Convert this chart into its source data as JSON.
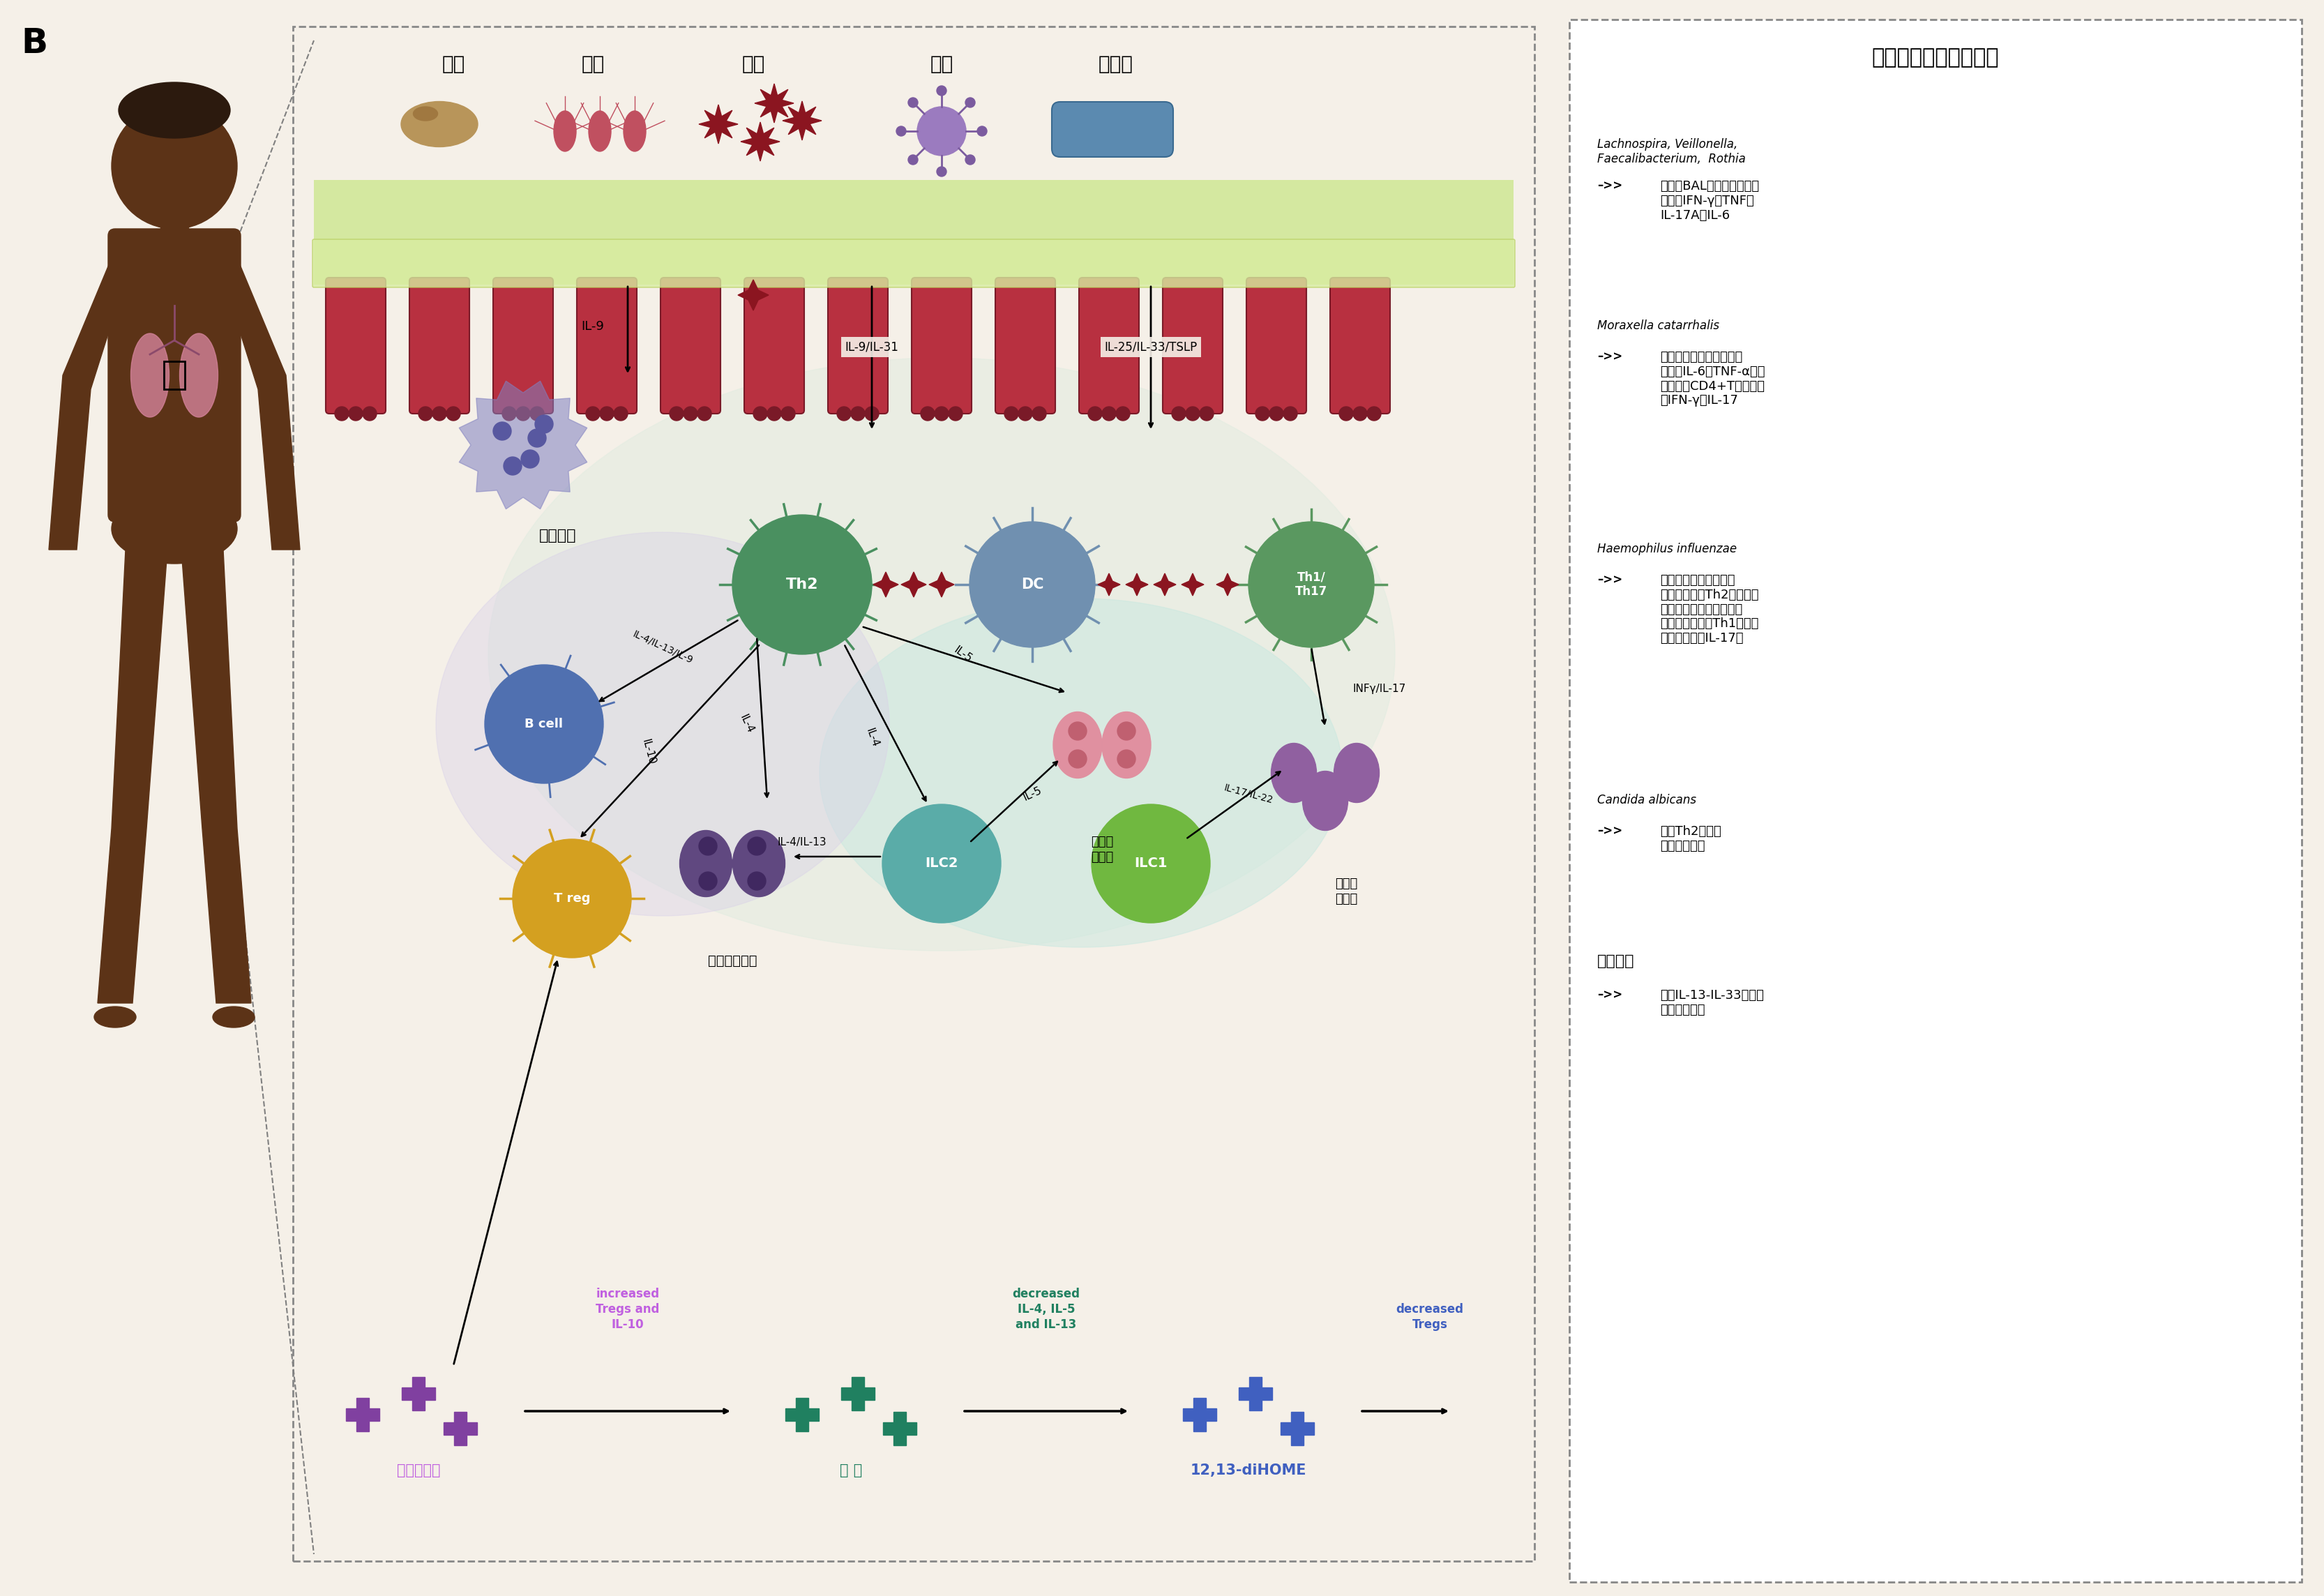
{
  "bg_color": "#f5f0e8",
  "title_right": "小鼠过敏性气道模型：",
  "entry1_italic": "Lachnospira, Veillonella,\nFaecalibacterium,  Rothia",
  "entry1_arrow": "–>>",
  "entry1_text": "降低了BAL中的总肺细胞，\n降低了IFN-γ，TNF，\nIL-17A，IL-6",
  "entry2_italic": "Moraxella catarrhalis",
  "entry2_arrow": "–>>",
  "entry2_text": "导致中性粒细胞浸润，高\n水平的IL-6，TNF-α，中\n等水平的CD4+T细胞衍生\n的IFN-γ和IL-17",
  "entry3_italic": "Haemophilus influenzae",
  "entry3_arrow": "–>>",
  "entry3_text": "导致类固醇敏感性过敏\n性气道疾病（Th2细胞和嗜\n酸性粒细胞）转化为类固\n醇耐药性疾病（Th1细胞，\n中性粒细胞，IL-17）",
  "entry4_italic": "Candida albicans",
  "entry4_arrow": "–>>",
  "entry4_text": "导致Th2介导的\n气道炎症加重",
  "entry5_bold": "流感感染",
  "entry5_arrow": "–>>",
  "entry5_text": "通过IL-13-IL-33轴诱发\n气道高反应性",
  "top_labels": [
    "真菌",
    "细菌",
    "抗原",
    "病毒",
    "古细菌"
  ],
  "label_IL9": "IL-9",
  "label_IL9_IL31": "IL-9/IL-31",
  "label_IL25": "IL-25/IL-33/TSLP",
  "cell_Th2": "Th2",
  "cell_DC": "DC",
  "cell_Th1Th17": "Th1/\nTh17",
  "cell_Bcell": "B cell",
  "cell_Treg": "T reg",
  "cell_ILC2": "ILC2",
  "cell_ILC1": "ILC1",
  "label_mast": "肥大细胞",
  "label_eosinophil": "嗜酸性\n粒细胞",
  "label_basophil": "嗜碱性粒细胞",
  "label_neutrophil": "嗜中性\n粒细胞",
  "label_IL4_IL13_IL9": "IL-4/IL-13/IL-9",
  "label_IL10": "IL-10",
  "label_IL4_1": "IL-4",
  "label_IL4_2": "IL-4",
  "label_IL5": "IL-5",
  "label_IL5_2": "IL-5",
  "label_IL4_IL13": "IL-4/IL-13",
  "label_IL17_IL22": "IL-17/IL-22",
  "label_INFy_IL17": "INFγ/IL-17",
  "label_SCFA": "短链脂肪酸",
  "label_histamine": "组 胺",
  "label_diHOME": "12,13-diHOME",
  "label_increased": "increased\nTregs and\nIL-10",
  "label_decreased1": "decreased\nIL-4, IL-5\nand IL-13",
  "label_decreased2": "decreased\nTregs",
  "panel_B": "B"
}
